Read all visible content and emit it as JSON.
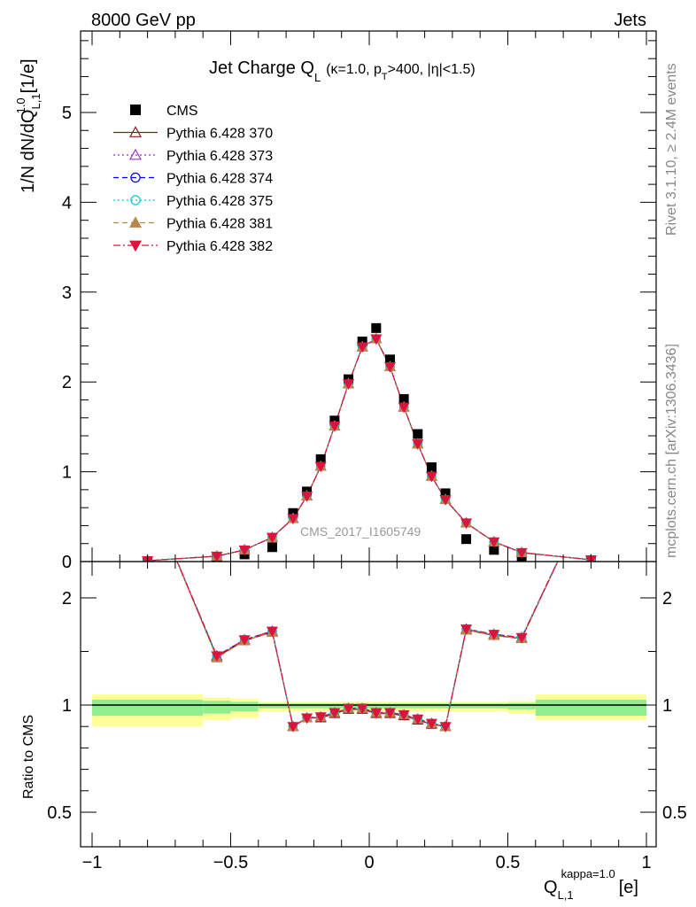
{
  "header": {
    "left": "8000 GeV pp",
    "right": "Jets"
  },
  "side_labels": {
    "rivet": "Rivet 3.1.10, ≥ 2.4M events",
    "source": "mcplots.cern.ch [arXiv:1306.3436]"
  },
  "colors": {
    "cms": "#000000",
    "p370": "#8b1a1a",
    "p373": "#9932cc",
    "p374": "#0000ff",
    "p375": "#00ced1",
    "p381": "#b8864b",
    "p382": "#dc143c",
    "band_inner": "#90ee90",
    "band_outer": "#ffff99"
  },
  "chart_data": [
    {
      "type": "scatter",
      "panel": "main",
      "title_main": "Jet Charge Q",
      "title_sub": "L",
      "title_params": "(κ=1.0, p",
      "title_params_sub": "T",
      "title_params_rest": ">400, |η|<1.5)",
      "ylabel": "1/N dN/dQ",
      "ylabel_sup": "1.0",
      "ylabel_sub": "L,1",
      "ylabel_unit": "[1/e]",
      "watermark": "CMS_2017_I1605749",
      "xlim": [
        -1.1,
        1.1
      ],
      "ylim": [
        0,
        5.9
      ],
      "yticks": [
        0,
        1,
        2,
        3,
        4,
        5
      ],
      "legend_position": "top-left",
      "x": [
        -0.8,
        -0.55,
        -0.45,
        -0.35,
        -0.275,
        -0.225,
        -0.175,
        -0.125,
        -0.075,
        -0.025,
        0.025,
        0.075,
        0.125,
        0.175,
        0.225,
        0.275,
        0.35,
        0.45,
        0.55,
        0.8
      ],
      "series": [
        {
          "name": "CMS",
          "key": "cms",
          "marker": "square-filled",
          "line": "none",
          "values": [
            0.0,
            0.04,
            0.08,
            0.16,
            0.54,
            0.78,
            1.14,
            1.57,
            2.03,
            2.45,
            2.6,
            2.25,
            1.81,
            1.42,
            1.05,
            0.76,
            0.25,
            0.13,
            0.06,
            0.0
          ]
        },
        {
          "name": "Pythia 6.428 370",
          "key": "p370",
          "marker": "triangle-up-open",
          "line": "solid",
          "values": [
            0.01,
            0.06,
            0.13,
            0.27,
            0.48,
            0.73,
            1.06,
            1.51,
            1.98,
            2.39,
            2.48,
            2.17,
            1.72,
            1.31,
            0.95,
            0.69,
            0.43,
            0.22,
            0.1,
            0.02
          ]
        },
        {
          "name": "Pythia 6.428 373",
          "key": "p373",
          "marker": "triangle-up-open",
          "line": "dotted",
          "values": [
            0.01,
            0.06,
            0.13,
            0.27,
            0.48,
            0.73,
            1.06,
            1.51,
            1.98,
            2.39,
            2.48,
            2.17,
            1.72,
            1.31,
            0.95,
            0.69,
            0.43,
            0.22,
            0.1,
            0.02
          ]
        },
        {
          "name": "Pythia 6.428 374",
          "key": "p374",
          "marker": "circle-open",
          "line": "dashed",
          "values": [
            0.01,
            0.06,
            0.13,
            0.27,
            0.48,
            0.73,
            1.06,
            1.51,
            1.98,
            2.39,
            2.48,
            2.17,
            1.72,
            1.31,
            0.95,
            0.69,
            0.43,
            0.22,
            0.1,
            0.02
          ]
        },
        {
          "name": "Pythia 6.428 375",
          "key": "p375",
          "marker": "circle-open",
          "line": "dotted",
          "values": [
            0.01,
            0.06,
            0.13,
            0.27,
            0.48,
            0.73,
            1.06,
            1.51,
            1.98,
            2.39,
            2.48,
            2.17,
            1.72,
            1.31,
            0.95,
            0.69,
            0.43,
            0.22,
            0.1,
            0.02
          ]
        },
        {
          "name": "Pythia 6.428 381",
          "key": "p381",
          "marker": "triangle-up-filled",
          "line": "dashed",
          "values": [
            0.01,
            0.06,
            0.13,
            0.27,
            0.48,
            0.73,
            1.06,
            1.51,
            1.98,
            2.39,
            2.48,
            2.17,
            1.72,
            1.31,
            0.95,
            0.69,
            0.43,
            0.22,
            0.1,
            0.02
          ]
        },
        {
          "name": "Pythia 6.428 382",
          "key": "p382",
          "marker": "triangle-down-filled",
          "line": "dashdot",
          "values": [
            0.01,
            0.06,
            0.13,
            0.27,
            0.48,
            0.73,
            1.06,
            1.51,
            1.98,
            2.39,
            2.48,
            2.17,
            1.72,
            1.31,
            0.95,
            0.69,
            0.43,
            0.22,
            0.1,
            0.02
          ]
        }
      ]
    },
    {
      "type": "line",
      "panel": "ratio",
      "ylabel": "Ratio to CMS",
      "xlabel": "Q",
      "xlabel_sup": "kappa=1.0",
      "xlabel_sub": "L,1",
      "xlabel_unit": "[e]",
      "xlim": [
        -1.1,
        1.1
      ],
      "ylim": [
        0.35,
        2.3
      ],
      "xticks": [
        -1,
        -0.5,
        0,
        0.5,
        1
      ],
      "xtick_labels": [
        "−1",
        "−0.5",
        "0",
        "0.5",
        "1"
      ],
      "yticks": [
        0.5,
        1,
        2
      ],
      "ytick_labels": [
        "0.5",
        "1",
        "2"
      ],
      "reference": 1,
      "band_bins": [
        {
          "x0": -1.0,
          "x1": -0.6,
          "inner": [
            0.95,
            1.05
          ],
          "outer": [
            0.9,
            1.1
          ]
        },
        {
          "x0": -0.6,
          "x1": -0.5,
          "inner": [
            0.96,
            1.04
          ],
          "outer": [
            0.93,
            1.07
          ]
        },
        {
          "x0": -0.5,
          "x1": -0.4,
          "inner": [
            0.97,
            1.03
          ],
          "outer": [
            0.94,
            1.06
          ]
        },
        {
          "x0": -0.4,
          "x1": 0.3,
          "inner": [
            0.985,
            1.015
          ],
          "outer": [
            0.97,
            1.03
          ]
        },
        {
          "x0": 0.3,
          "x1": 0.5,
          "inner": [
            0.985,
            1.015
          ],
          "outer": [
            0.97,
            1.03
          ]
        },
        {
          "x0": 0.5,
          "x1": 0.6,
          "inner": [
            0.98,
            1.02
          ],
          "outer": [
            0.96,
            1.04
          ]
        },
        {
          "x0": 0.6,
          "x1": 1.0,
          "inner": [
            0.95,
            1.05
          ],
          "outer": [
            0.93,
            1.1
          ]
        }
      ],
      "x": [
        -0.8,
        -0.55,
        -0.45,
        -0.35,
        -0.275,
        -0.225,
        -0.175,
        -0.125,
        -0.075,
        -0.025,
        0.025,
        0.075,
        0.125,
        0.175,
        0.225,
        0.275,
        0.35,
        0.45,
        0.55,
        0.8
      ],
      "series": [
        {
          "key": "p370",
          "values": [
            3.0,
            1.45,
            1.6,
            1.68,
            0.9,
            0.94,
            0.94,
            0.96,
            0.98,
            0.98,
            0.96,
            0.96,
            0.95,
            0.93,
            0.91,
            0.9,
            1.7,
            1.65,
            1.62,
            3.0
          ]
        },
        {
          "key": "p373",
          "values": [
            3.0,
            1.46,
            1.61,
            1.69,
            0.9,
            0.94,
            0.945,
            0.965,
            0.985,
            0.985,
            0.965,
            0.965,
            0.955,
            0.935,
            0.915,
            0.9,
            1.71,
            1.66,
            1.63,
            3.0
          ]
        },
        {
          "key": "p374",
          "values": [
            3.0,
            1.46,
            1.61,
            1.69,
            0.9,
            0.94,
            0.945,
            0.965,
            0.985,
            0.985,
            0.965,
            0.965,
            0.955,
            0.935,
            0.915,
            0.9,
            1.71,
            1.66,
            1.63,
            3.0
          ]
        },
        {
          "key": "p375",
          "values": [
            3.0,
            1.46,
            1.61,
            1.69,
            0.9,
            0.94,
            0.945,
            0.965,
            0.985,
            0.985,
            0.965,
            0.965,
            0.955,
            0.935,
            0.915,
            0.9,
            1.71,
            1.66,
            1.63,
            3.0
          ]
        },
        {
          "key": "p381",
          "values": [
            3.0,
            1.44,
            1.6,
            1.68,
            0.9,
            0.94,
            0.945,
            0.965,
            0.985,
            0.985,
            0.965,
            0.965,
            0.955,
            0.935,
            0.915,
            0.9,
            1.7,
            1.65,
            1.62,
            3.0
          ]
        },
        {
          "key": "p382",
          "values": [
            3.0,
            1.46,
            1.61,
            1.69,
            0.9,
            0.94,
            0.945,
            0.965,
            0.985,
            0.985,
            0.965,
            0.965,
            0.955,
            0.935,
            0.915,
            0.9,
            1.71,
            1.66,
            1.63,
            3.0
          ]
        }
      ]
    }
  ]
}
